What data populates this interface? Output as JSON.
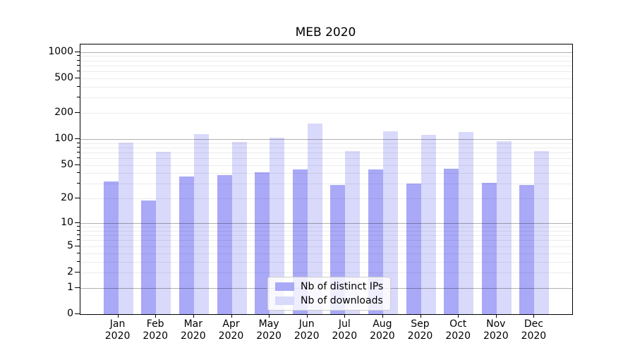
{
  "figure": {
    "background": "#ffffff"
  },
  "chart_data": {
    "type": "bar",
    "title": "MEB 2020",
    "xlabel": "",
    "ylabel": "",
    "categories": [
      "Jan 2020",
      "Feb 2020",
      "Mar 2020",
      "Apr 2020",
      "May 2020",
      "Jun 2020",
      "Jul 2020",
      "Aug 2020",
      "Sep 2020",
      "Oct 2020",
      "Nov 2020",
      "Dec 2020"
    ],
    "series": [
      {
        "name": "Nb of distinct IPs",
        "color": "#a9a9f8",
        "values": [
          32,
          19,
          37,
          38,
          41,
          44,
          29,
          44,
          30,
          45,
          31,
          29
        ]
      },
      {
        "name": "Nb of downloads",
        "color": "#d9d9fb",
        "values": [
          91,
          71,
          115,
          92,
          104,
          151,
          72,
          123,
          112,
          120,
          95,
          73
        ]
      }
    ],
    "yscale": "log1p",
    "ylim": [
      0,
      1220
    ],
    "y_tick_labels": [
      0,
      1,
      2,
      5,
      10,
      20,
      50,
      100,
      200,
      500,
      1000
    ],
    "y_major_grid": [
      1,
      10,
      100,
      1000
    ],
    "y_minor_grid": [
      2,
      3,
      4,
      5,
      6,
      7,
      8,
      9,
      20,
      30,
      40,
      50,
      60,
      70,
      80,
      90,
      200,
      300,
      400,
      500,
      600,
      700,
      800,
      900
    ],
    "grid": true,
    "legend_position": "lower center",
    "colors": {
      "major_grid": "#b0b0b0",
      "minor_grid": "#ececec",
      "axis": "#000000",
      "legend_border": "#cccccc",
      "legend_background": "rgba(255,255,255,0.8)",
      "text": "#000000"
    }
  }
}
